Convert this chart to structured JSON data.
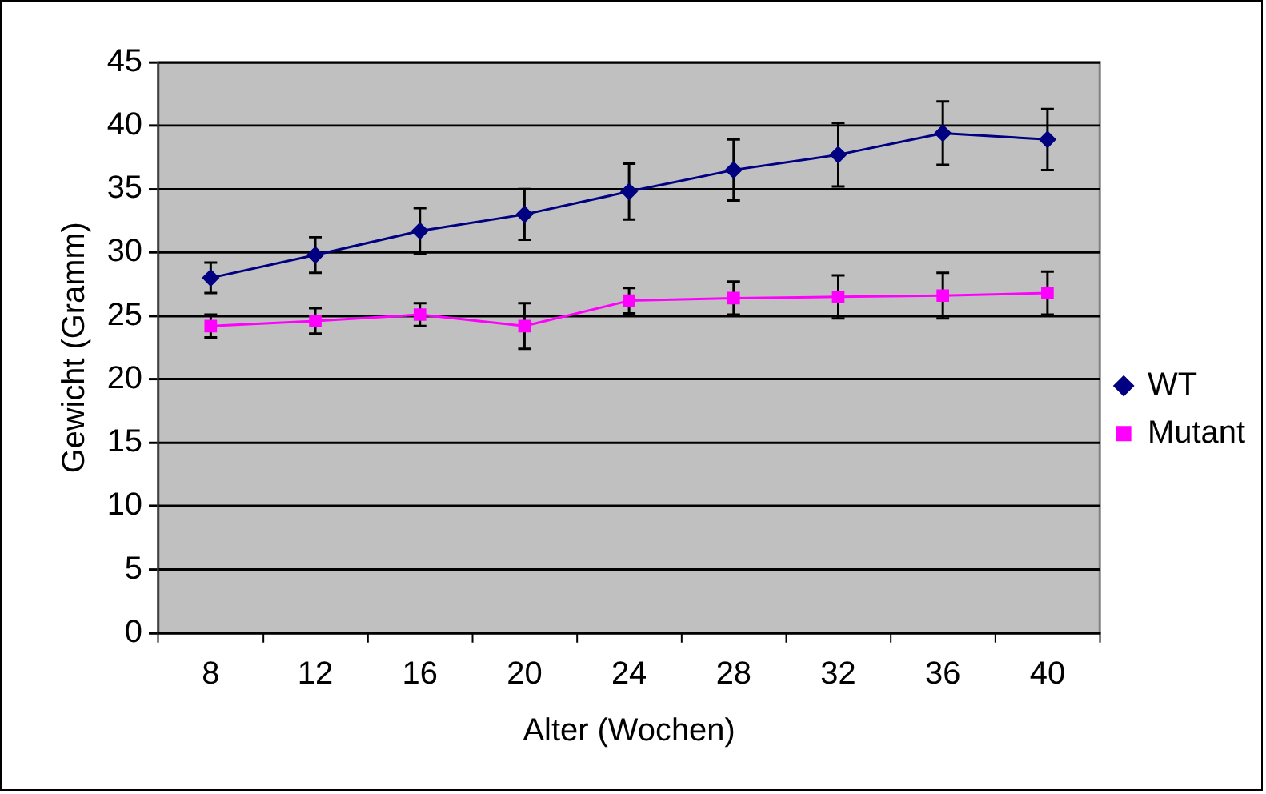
{
  "chart_data": {
    "type": "line",
    "xlabel": "Alter (Wochen)",
    "ylabel": "Gewicht (Gramm)",
    "categories": [
      "8",
      "12",
      "16",
      "20",
      "24",
      "28",
      "32",
      "36",
      "40"
    ],
    "ylim": [
      0,
      45
    ],
    "yticks": [
      0,
      5,
      10,
      15,
      20,
      25,
      30,
      35,
      40,
      45
    ],
    "grid": "y",
    "legend": "right",
    "line_style": "solid",
    "series": [
      {
        "name": "WT",
        "color": "#000080",
        "marker": "diamond",
        "values": [
          28,
          29.8,
          31.7,
          33,
          34.8,
          36.5,
          37.7,
          39.4,
          38.9
        ],
        "errors": [
          1.2,
          1.4,
          1.8,
          2,
          2.2,
          2.4,
          2.5,
          2.5,
          2.4
        ]
      },
      {
        "name": "Mutant",
        "color": "#ff00ff",
        "marker": "square",
        "values": [
          24.2,
          24.6,
          25.1,
          24.2,
          26.2,
          26.4,
          26.5,
          26.6,
          26.8
        ],
        "errors": [
          0.9,
          1,
          0.9,
          1.8,
          1,
          1.3,
          1.7,
          1.8,
          1.7
        ]
      }
    ]
  }
}
